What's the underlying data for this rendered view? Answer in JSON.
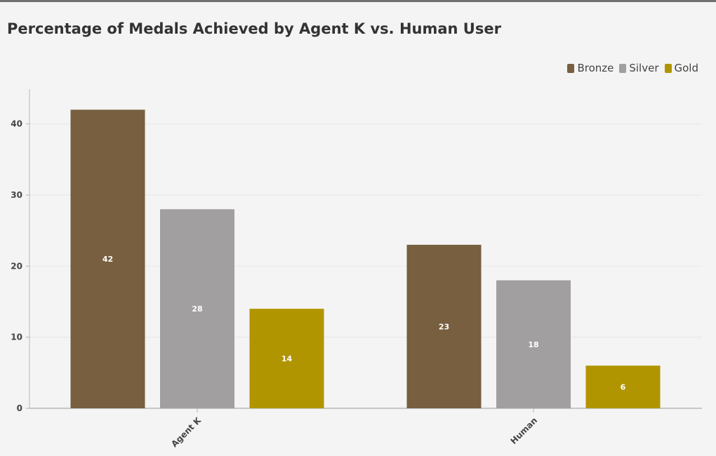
{
  "chart_data": {
    "type": "bar",
    "title": "Percentage of Medals Achieved by Agent K vs. Human User",
    "xlabel": "",
    "ylabel": "",
    "categories": [
      "Agent K",
      "Human"
    ],
    "series": [
      {
        "name": "Bronze",
        "color": "#775f3f",
        "values": [
          42,
          23
        ]
      },
      {
        "name": "Silver",
        "color": "#a19f9f",
        "values": [
          28,
          18
        ]
      },
      {
        "name": "Gold",
        "color": "#b19500",
        "values": [
          14,
          6
        ]
      }
    ],
    "ylim": [
      0,
      45
    ],
    "yticks": [
      0,
      10,
      20,
      30,
      40
    ],
    "grid": true,
    "legend_position": "top-right",
    "data_labels": true
  }
}
